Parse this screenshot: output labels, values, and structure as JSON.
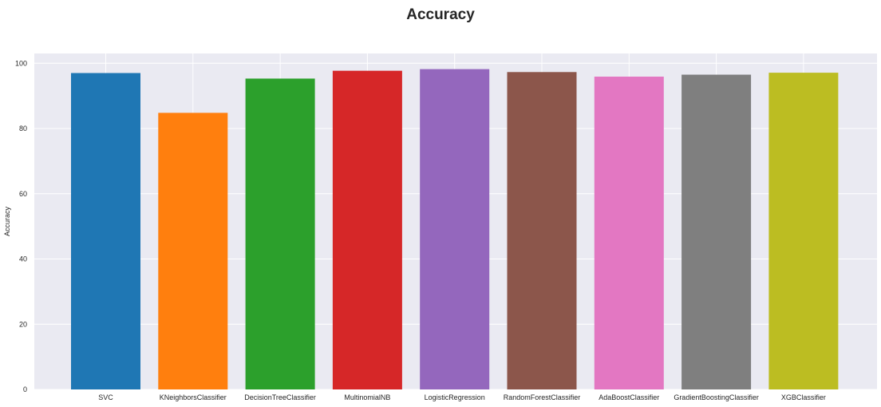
{
  "chart_data": {
    "type": "bar",
    "title": "Accuracy",
    "xlabel": "",
    "ylabel": "Accuracy",
    "categories": [
      "SVC",
      "KNeighborsClassifier",
      "DecisionTreeClassifier",
      "MultinomialNB",
      "LogisticRegression",
      "RandomForestClassifier",
      "AdaBoostClassifier",
      "GradientBoostingClassifier",
      "XGBClassifier"
    ],
    "values": [
      97.0,
      84.8,
      95.3,
      97.7,
      98.2,
      97.3,
      95.9,
      96.5,
      97.1
    ],
    "colors": [
      "#1f77b4",
      "#ff7f0e",
      "#2ca02c",
      "#d62728",
      "#9467bd",
      "#8c564b",
      "#e377c2",
      "#7f7f7f",
      "#bcbd22"
    ],
    "ylim": [
      0,
      103
    ],
    "yticks": [
      0,
      20,
      40,
      60,
      80,
      100
    ],
    "grid": true,
    "background": "#eaeaf2"
  }
}
